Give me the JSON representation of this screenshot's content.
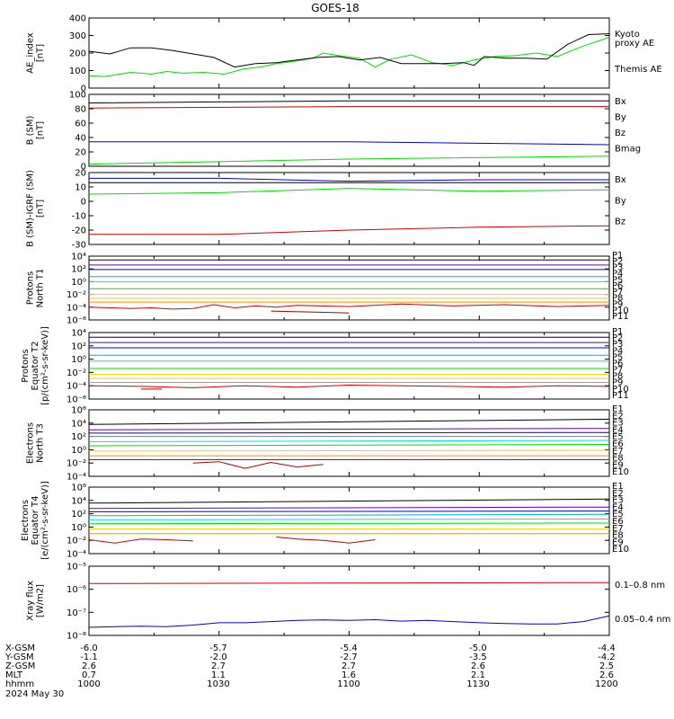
{
  "title": "GOES-18",
  "date_label": "2024 May 30",
  "ephem": {
    "labels": [
      "X-GSM",
      "Y-GSM",
      "Z-GSM",
      "MLT",
      "hhmm"
    ],
    "rows": [
      [
        "-6.0",
        "-5.7",
        "-5.4",
        "-5.0",
        "-4.4"
      ],
      [
        "-1.1",
        "-2.0",
        "-2.7",
        "-3.5",
        "-4.2"
      ],
      [
        "2.6",
        "2.7",
        "2.7",
        "2.6",
        "2.5"
      ],
      [
        "0.7",
        "1.1",
        "1.6",
        "2.1",
        "2.6"
      ],
      [
        "1000",
        "1030",
        "1100",
        "1130",
        "1200"
      ]
    ]
  },
  "colors": {
    "black": "#000000",
    "green": "#00dd00",
    "blue": "#0000cc",
    "red": "#cc0000",
    "purple": "#660099",
    "teal": "#00aadd",
    "cyan": "#00dddd",
    "yellow": "#ffcc00",
    "orange": "#ff8800",
    "darkred": "#aa0000"
  },
  "chart_data": [
    {
      "type": "line",
      "ylabel": "AE_index\n[nT]",
      "ylim": [
        0,
        400
      ],
      "log": false,
      "yticks": [
        0,
        100,
        200,
        300,
        400
      ],
      "ytick_labels": [
        "0",
        "100",
        "200",
        "300",
        "400"
      ],
      "series": [
        {
          "name": "Kyoto\nproxy AE",
          "color": "#00dd00",
          "x": [
            0,
            3,
            5,
            8,
            12,
            15,
            18,
            22,
            26,
            30,
            33,
            36,
            40,
            43,
            45,
            48,
            52,
            55,
            58,
            62,
            66,
            70,
            74,
            78,
            82,
            86,
            90,
            95,
            100
          ],
          "values": [
            70,
            65,
            75,
            90,
            80,
            95,
            85,
            90,
            80,
            110,
            120,
            140,
            155,
            170,
            200,
            185,
            170,
            120,
            165,
            190,
            145,
            130,
            160,
            180,
            185,
            200,
            180,
            240,
            290
          ]
        },
        {
          "name": "Themis AE",
          "color": "#000000",
          "x": [
            0,
            4,
            8,
            12,
            16,
            20,
            24,
            28,
            32,
            36,
            40,
            44,
            48,
            52,
            56,
            60,
            64,
            68,
            72,
            74,
            76,
            80,
            84,
            88,
            92,
            96,
            100
          ],
          "values": [
            210,
            195,
            230,
            230,
            215,
            195,
            175,
            120,
            140,
            145,
            160,
            175,
            180,
            160,
            175,
            140,
            140,
            140,
            145,
            130,
            180,
            170,
            170,
            165,
            250,
            305,
            310
          ]
        }
      ]
    },
    {
      "type": "line",
      "ylabel": "B (SM)\n[nT]",
      "ylim": [
        0,
        100
      ],
      "log": false,
      "yticks": [
        0,
        20,
        40,
        60,
        80,
        100
      ],
      "ytick_labels": [
        "0",
        "20",
        "40",
        "60",
        "80",
        "100"
      ],
      "series": [
        {
          "name": "Bx",
          "color": "#0000cc",
          "x": [
            0,
            50,
            100
          ],
          "values": [
            34,
            34,
            30
          ]
        },
        {
          "name": "By",
          "color": "#00dd00",
          "x": [
            0,
            50,
            100
          ],
          "values": [
            3,
            10,
            14
          ]
        },
        {
          "name": "Bz",
          "color": "#cc0000",
          "x": [
            0,
            50,
            100
          ],
          "values": [
            81,
            83,
            83
          ]
        },
        {
          "name": "Bmag",
          "color": "#000000",
          "x": [
            0,
            50,
            100
          ],
          "values": [
            88,
            91,
            91
          ]
        }
      ]
    },
    {
      "type": "line",
      "ylabel": "B (SM)-IGRF (SM)\n[nT]",
      "ylim": [
        -30,
        20
      ],
      "log": false,
      "yticks": [
        -30,
        -20,
        -10,
        0,
        10,
        20
      ],
      "ytick_labels": [
        "-30",
        "-20",
        "-10",
        "0",
        "10",
        "20"
      ],
      "series": [
        {
          "name": "Bx",
          "color": "#0000cc",
          "x": [
            0,
            25,
            50,
            75,
            100
          ],
          "values": [
            16,
            16,
            14,
            15,
            15
          ]
        },
        {
          "name": "By",
          "color": "#00dd00",
          "x": [
            0,
            25,
            50,
            75,
            100
          ],
          "values": [
            5,
            6,
            9,
            7,
            8
          ]
        },
        {
          "name": "Bz",
          "color": "#cc0000",
          "x": [
            0,
            25,
            50,
            75,
            100
          ],
          "values": [
            -23,
            -23,
            -20,
            -18,
            -17
          ]
        },
        {
          "name": "",
          "color": "#000000",
          "x": [
            0,
            100
          ],
          "values": [
            13,
            13
          ]
        }
      ]
    },
    {
      "type": "line",
      "ylabel": "Protons\nNorth T1",
      "ylim": [
        -6,
        4
      ],
      "log": true,
      "yticks": [
        -6,
        -4,
        -2,
        0,
        2,
        4
      ],
      "ytick_labels": [
        "10⁻⁶",
        "10⁻⁴",
        "10⁻²",
        "10⁰",
        "10²",
        "10⁴"
      ],
      "series": [
        {
          "name": "P1",
          "color": "#000000",
          "x": [
            0,
            100
          ],
          "values": [
            3.4,
            3.4
          ]
        },
        {
          "name": "P2",
          "color": "#660099",
          "x": [
            0,
            100
          ],
          "values": [
            2.6,
            2.6
          ]
        },
        {
          "name": "P3",
          "color": "#0000cc",
          "x": [
            0,
            100
          ],
          "values": [
            1.9,
            1.9
          ]
        },
        {
          "name": "P4",
          "color": "#00aadd",
          "x": [
            0,
            100
          ],
          "values": [
            0.8,
            0.8
          ]
        },
        {
          "name": "P5",
          "color": "#00dddd",
          "x": [
            0,
            100
          ],
          "values": [
            0.0,
            0.0
          ]
        },
        {
          "name": "P6",
          "color": "#00dd00",
          "x": [
            0,
            100
          ],
          "values": [
            -1.1,
            -1.1
          ]
        },
        {
          "name": "P7",
          "color": "#ffcc00",
          "x": [
            0,
            100
          ],
          "values": [
            -2.0,
            -2.0
          ]
        },
        {
          "name": "P8",
          "color": "#ffcc00",
          "x": [
            0,
            100
          ],
          "values": [
            -2.6,
            -2.6
          ]
        },
        {
          "name": "P9",
          "color": "#ff8800",
          "x": [
            0,
            100
          ],
          "values": [
            -3.2,
            -3.2
          ]
        },
        {
          "name": "P10",
          "color": "#cc0000",
          "x": [
            0,
            8,
            12,
            16,
            20,
            24,
            28,
            32,
            36,
            40,
            50,
            60,
            70,
            80,
            90,
            100
          ],
          "values": [
            -4.0,
            -4.2,
            -4.1,
            -4.3,
            -4.2,
            -3.6,
            -4.1,
            -3.8,
            -4.0,
            -3.7,
            -3.9,
            -3.5,
            -3.8,
            -3.6,
            -3.9,
            -3.7
          ]
        },
        {
          "name": "P11",
          "color": "#aa0000",
          "x": [
            35,
            50
          ],
          "values": [
            -4.6,
            -4.9
          ]
        }
      ]
    },
    {
      "type": "line",
      "ylabel": "Protons\nEquator T2\n[p/(cm²-s-sr-keV)]",
      "ylim": [
        -6,
        4
      ],
      "log": true,
      "yticks": [
        -6,
        -4,
        -2,
        0,
        2,
        4
      ],
      "ytick_labels": [
        "10⁻⁶",
        "10⁻⁴",
        "10⁻²",
        "10⁰",
        "10²",
        "10⁴"
      ],
      "series": [
        {
          "name": "P1",
          "color": "#000000",
          "x": [
            0,
            100
          ],
          "values": [
            3.3,
            3.3
          ]
        },
        {
          "name": "P2",
          "color": "#660099",
          "x": [
            0,
            100
          ],
          "values": [
            2.5,
            2.5
          ]
        },
        {
          "name": "P3",
          "color": "#0000cc",
          "x": [
            0,
            100
          ],
          "values": [
            1.7,
            1.7
          ]
        },
        {
          "name": "P4",
          "color": "#00aadd",
          "x": [
            0,
            100
          ],
          "values": [
            0.6,
            0.6
          ]
        },
        {
          "name": "P5",
          "color": "#00dddd",
          "x": [
            0,
            100
          ],
          "values": [
            -0.3,
            -0.3
          ]
        },
        {
          "name": "P6",
          "color": "#00dd00",
          "x": [
            0,
            100
          ],
          "values": [
            -1.4,
            -1.4
          ]
        },
        {
          "name": "P7",
          "color": "#ffcc00",
          "x": [
            0,
            100
          ],
          "values": [
            -2.3,
            -2.3
          ]
        },
        {
          "name": "P8",
          "color": "#ffcc00",
          "x": [
            0,
            100
          ],
          "values": [
            -2.9,
            -2.9
          ]
        },
        {
          "name": "P9",
          "color": "#ff8800",
          "x": [
            0,
            100
          ],
          "values": [
            -3.5,
            -3.5
          ]
        },
        {
          "name": "P10",
          "color": "#cc0000",
          "x": [
            0,
            10,
            20,
            30,
            40,
            50,
            60,
            70,
            80,
            90,
            100
          ],
          "values": [
            -4.0,
            -4.1,
            -4.3,
            -4.0,
            -4.2,
            -3.9,
            -4.0,
            -4.1,
            -4.2,
            -4.0,
            -4.1
          ]
        },
        {
          "name": "P11",
          "color": "#aa0000",
          "x": [
            10,
            14
          ],
          "values": [
            -4.5,
            -4.5
          ]
        }
      ]
    },
    {
      "type": "line",
      "ylabel": "Electrons\nNorth T3",
      "ylim": [
        -4,
        6
      ],
      "log": true,
      "yticks": [
        -4,
        -2,
        0,
        2,
        4,
        6
      ],
      "ytick_labels": [
        "10⁻⁴",
        "10⁻²",
        "10⁰",
        "10²",
        "10⁴",
        "10⁶"
      ],
      "series": [
        {
          "name": "E1",
          "color": "#000000",
          "x": [
            0,
            100
          ],
          "values": [
            3.8,
            4.6
          ]
        },
        {
          "name": "E2",
          "color": "#660099",
          "x": [
            0,
            100
          ],
          "values": [
            3.0,
            3.2
          ]
        },
        {
          "name": "E3",
          "color": "#0000cc",
          "x": [
            0,
            100
          ],
          "values": [
            2.5,
            2.6
          ]
        },
        {
          "name": "E4",
          "color": "#00aadd",
          "x": [
            0,
            100
          ],
          "values": [
            2.0,
            2.0
          ]
        },
        {
          "name": "E5",
          "color": "#00dddd",
          "x": [
            0,
            100
          ],
          "values": [
            1.2,
            1.4
          ]
        },
        {
          "name": "E6",
          "color": "#00dd00",
          "x": [
            0,
            100
          ],
          "values": [
            0.6,
            0.8
          ]
        },
        {
          "name": "E7",
          "color": "#ffcc00",
          "x": [
            0,
            100
          ],
          "values": [
            -0.2,
            -0.1
          ]
        },
        {
          "name": "E8",
          "color": "#ff8800",
          "x": [
            0,
            100
          ],
          "values": [
            -0.9,
            -0.9
          ]
        },
        {
          "name": "E9",
          "color": "#cc0000",
          "x": [
            0,
            100
          ],
          "values": [
            -1.5,
            -1.5
          ]
        },
        {
          "name": "E10",
          "color": "#aa0000",
          "x": [
            20,
            25,
            30,
            35,
            40,
            45
          ],
          "values": [
            -2.0,
            -1.8,
            -2.8,
            -1.9,
            -2.6,
            -2.2
          ]
        }
      ]
    },
    {
      "type": "line",
      "ylabel": "Electrons\nEquator T4\n[e/(cm²-s-sr-keV)]",
      "ylim": [
        -4,
        6
      ],
      "log": true,
      "yticks": [
        -4,
        -2,
        0,
        2,
        4,
        6
      ],
      "ytick_labels": [
        "10⁻⁴",
        "10⁻²",
        "10⁰",
        "10²",
        "10⁴",
        "10⁶"
      ],
      "series": [
        {
          "name": "E1",
          "color": "#000000",
          "x": [
            0,
            100
          ],
          "values": [
            3.6,
            4.2
          ]
        },
        {
          "name": "E2",
          "color": "#660099",
          "x": [
            0,
            100
          ],
          "values": [
            2.8,
            3.0
          ]
        },
        {
          "name": "E3",
          "color": "#0000cc",
          "x": [
            0,
            100
          ],
          "values": [
            2.3,
            2.4
          ]
        },
        {
          "name": "E4",
          "color": "#00aadd",
          "x": [
            0,
            100
          ],
          "values": [
            1.7,
            1.9
          ]
        },
        {
          "name": "E5",
          "color": "#00dddd",
          "x": [
            0,
            100
          ],
          "values": [
            1.1,
            1.2
          ]
        },
        {
          "name": "E6",
          "color": "#00dd00",
          "x": [
            0,
            100
          ],
          "values": [
            0.5,
            0.6
          ]
        },
        {
          "name": "E7",
          "color": "#ffcc00",
          "x": [
            0,
            100
          ],
          "values": [
            -0.3,
            -0.3
          ]
        },
        {
          "name": "E8",
          "color": "#ff8800",
          "x": [
            0,
            100
          ],
          "values": [
            -1.0,
            -1.0
          ]
        },
        {
          "name": "E9",
          "color": "#cc0000",
          "x": [
            0,
            5,
            10,
            15,
            20
          ],
          "values": [
            -1.9,
            -2.4,
            -1.8,
            -1.9,
            -2.1
          ]
        },
        {
          "name": "E10",
          "color": "#aa0000",
          "x": [
            36,
            40,
            45,
            50,
            55
          ],
          "values": [
            -1.5,
            -1.8,
            -2.0,
            -2.4,
            -1.9
          ]
        }
      ]
    },
    {
      "type": "line",
      "ylabel": "Xray flux\n[W/m2]",
      "ylim": [
        -8,
        -5
      ],
      "log": true,
      "yticks": [
        -8,
        -7,
        -6,
        -5
      ],
      "ytick_labels": [
        "10⁻⁸",
        "10⁻⁷",
        "10⁻⁶",
        "10⁻⁵"
      ],
      "series": [
        {
          "name": "0.1–0.8 nm",
          "color": "#cc0000",
          "x": [
            0,
            50,
            100
          ],
          "values": [
            -5.75,
            -5.73,
            -5.71
          ]
        },
        {
          "name": "0.05–0.4 nm",
          "color": "#0000cc",
          "x": [
            0,
            5,
            10,
            15,
            20,
            25,
            30,
            35,
            40,
            45,
            50,
            55,
            60,
            65,
            70,
            75,
            80,
            85,
            90,
            95,
            100
          ],
          "values": [
            -7.65,
            -7.62,
            -7.6,
            -7.62,
            -7.55,
            -7.45,
            -7.45,
            -7.4,
            -7.35,
            -7.33,
            -7.35,
            -7.32,
            -7.38,
            -7.35,
            -7.4,
            -7.45,
            -7.48,
            -7.5,
            -7.5,
            -7.4,
            -7.15
          ]
        }
      ]
    }
  ]
}
